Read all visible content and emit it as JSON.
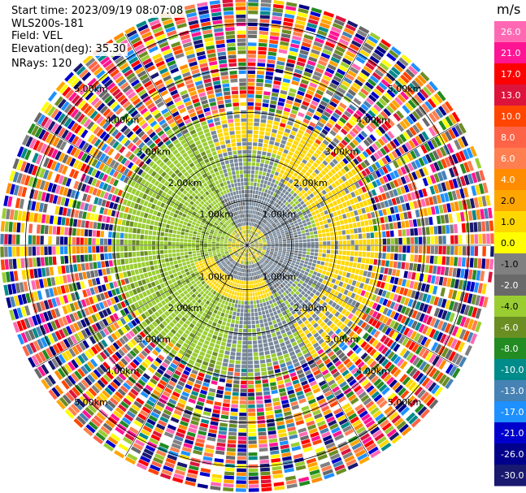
{
  "header": {
    "start_time": "Start time: 2023/09/19 08:07:08",
    "instrument": "WLS200s-181",
    "field": "Field: VEL",
    "elevation": "Elevation(deg): 35.30",
    "nrays": "NRays: 120"
  },
  "chart_data": {
    "type": "heatmap",
    "projection": "polar-ppi",
    "n_rays": 120,
    "range_ring_labels": [
      "1.00km",
      "2.00km",
      "3.00km",
      "4.00km",
      "5.00km"
    ],
    "range_rings_km": [
      1,
      2,
      3,
      4,
      5
    ],
    "max_range_km": 5.5,
    "colorbar": {
      "unit": "m/s",
      "tick_labels": [
        "26.0",
        "21.0",
        "17.0",
        "13.0",
        "10.0",
        "8.0",
        "6.0",
        "4.0",
        "2.0",
        "1.0",
        "0.0",
        "-1.0",
        "-2.0",
        "-4.0",
        "-6.0",
        "-8.0",
        "-10.0",
        "-13.0",
        "-17.0",
        "-21.0",
        "-26.0",
        "-30.0"
      ],
      "colors": [
        "#ff69b4",
        "#ff1493",
        "#ff0000",
        "#dc143c",
        "#ff4500",
        "#ff6347",
        "#ff7f50",
        "#ff8c00",
        "#ffa500",
        "#ffd700",
        "#ffff00",
        "#808080",
        "#696969",
        "#9acd32",
        "#6b8e23",
        "#228b22",
        "#008b8b",
        "#4682b4",
        "#1e90ff",
        "#0000cd",
        "#00008b",
        "#191970"
      ]
    },
    "velocity_field": {
      "inner_core_km": 0.4,
      "inner_ring_km": [
        0.4,
        1.2
      ],
      "inner_ring_pattern": "yellow-positive south sector, gray elsewhere",
      "mid_ring_km": [
        1.2,
        3.0
      ],
      "mid_ring_pattern": "yellow-positive east/north-east, green-negative west, gray mixed",
      "noise_beyond_km": 3.0
    }
  }
}
